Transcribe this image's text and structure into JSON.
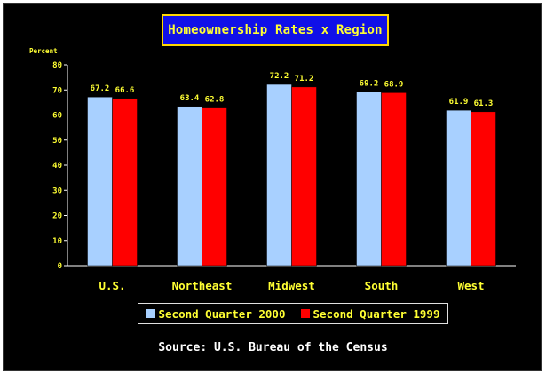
{
  "colors": {
    "background": "#000000",
    "title_box": "#1010e8",
    "title_text": "#ffff33",
    "series_2000": "#a8d0ff",
    "series_1999": "#ff0000",
    "value_labels": "#ffff33",
    "axis": "#ffffff"
  },
  "chart_data": {
    "type": "bar",
    "title": "Homeownership Rates x Region",
    "ylabel": "Percent",
    "xlabel": "",
    "ylim": [
      0,
      80
    ],
    "yticks": [
      0,
      10,
      20,
      30,
      40,
      50,
      60,
      70,
      80
    ],
    "categories": [
      "U.S.",
      "Northeast",
      "Midwest",
      "South",
      "West"
    ],
    "series": [
      {
        "name": "Second Quarter 2000",
        "values": [
          67.2,
          63.4,
          72.2,
          69.2,
          61.9
        ],
        "labels": [
          "67.2",
          "63.4",
          "72.2",
          "69.2",
          "61.9"
        ]
      },
      {
        "name": "Second Quarter 1999",
        "values": [
          66.6,
          62.8,
          71.2,
          68.9,
          61.3
        ],
        "labels": [
          "66.6",
          "62.8",
          "71.2",
          "68.9",
          "61.3"
        ]
      }
    ],
    "legend_position": "bottom",
    "grid": false
  },
  "source": "Source: U.S. Bureau of the Census"
}
